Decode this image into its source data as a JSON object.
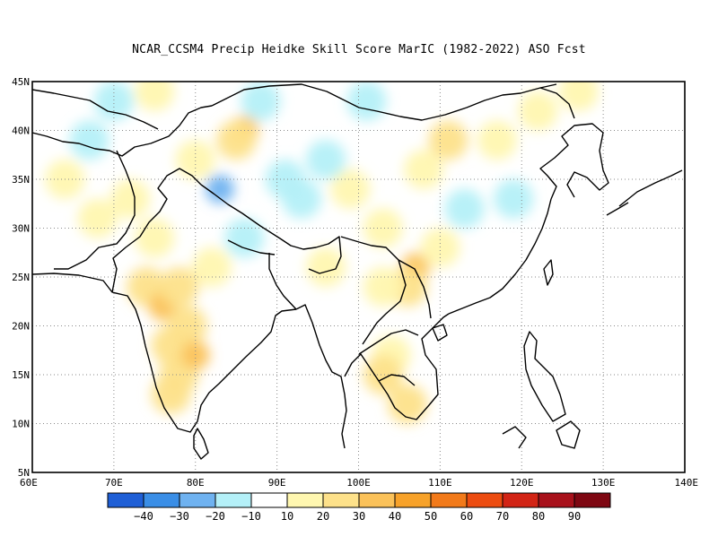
{
  "title": "NCAR_CCSM4 Precip Heidke Skill Score MarIC (1982-2022) ASO Fcst",
  "map": {
    "lon_range": [
      60,
      140
    ],
    "lat_range": [
      5,
      45
    ],
    "lon_ticks": [
      "60E",
      "70E",
      "80E",
      "90E",
      "100E",
      "110E",
      "120E",
      "130E",
      "140E"
    ],
    "lat_ticks": [
      "5N",
      "10N",
      "15N",
      "20N",
      "25N",
      "30N",
      "35N",
      "40N",
      "45N"
    ],
    "grid": "dotted"
  },
  "colorbar": {
    "colors": [
      "#1f5fd6",
      "#3a8ee6",
      "#6fb2f0",
      "#b4f0f8",
      "#ffffff",
      "#fff7b0",
      "#fde18a",
      "#fbc25a",
      "#f7a22a",
      "#f27a1a",
      "#ec4c10",
      "#d22415",
      "#a8111b",
      "#7e0712"
    ],
    "labels": [
      "-40",
      "-30",
      "-20",
      "-10",
      "10",
      "20",
      "30",
      "40",
      "50",
      "60",
      "70",
      "80",
      "90"
    ]
  },
  "anomalies": [
    {
      "lon": 68,
      "lat": 31,
      "level": 1
    },
    {
      "lon": 64,
      "lat": 35,
      "level": 1
    },
    {
      "lon": 72,
      "lat": 33,
      "level": 1
    },
    {
      "lon": 75,
      "lat": 29,
      "level": 1
    },
    {
      "lon": 74,
      "lat": 24,
      "level": 2
    },
    {
      "lon": 76,
      "lat": 22,
      "level": 3
    },
    {
      "lon": 78,
      "lat": 24,
      "level": 2
    },
    {
      "lon": 79,
      "lat": 20,
      "level": 2
    },
    {
      "lon": 77,
      "lat": 18,
      "level": 2
    },
    {
      "lon": 78,
      "lat": 15,
      "level": 2
    },
    {
      "lon": 77,
      "lat": 13,
      "level": 2
    },
    {
      "lon": 80,
      "lat": 17,
      "level": 3
    },
    {
      "lon": 82,
      "lat": 26,
      "level": 1
    },
    {
      "lon": 86,
      "lat": 40,
      "level": 3
    },
    {
      "lon": 85,
      "lat": 39,
      "level": 2
    },
    {
      "lon": 96,
      "lat": 26,
      "level": 1
    },
    {
      "lon": 99,
      "lat": 34,
      "level": 1
    },
    {
      "lon": 103,
      "lat": 30,
      "level": 1
    },
    {
      "lon": 107,
      "lat": 26,
      "level": 3
    },
    {
      "lon": 106,
      "lat": 24,
      "level": 2
    },
    {
      "lon": 103,
      "lat": 24,
      "level": 1
    },
    {
      "lon": 110,
      "lat": 28,
      "level": 1
    },
    {
      "lon": 111,
      "lat": 39,
      "level": 2
    },
    {
      "lon": 108,
      "lat": 36,
      "level": 1
    },
    {
      "lon": 104,
      "lat": 17,
      "level": 1
    },
    {
      "lon": 103,
      "lat": 15,
      "level": 2
    },
    {
      "lon": 106,
      "lat": 12,
      "level": 2
    },
    {
      "lon": 117,
      "lat": 39,
      "level": 1
    },
    {
      "lon": 122,
      "lat": 42,
      "level": 1
    },
    {
      "lon": 127,
      "lat": 44,
      "level": 1
    },
    {
      "lon": 75,
      "lat": 44,
      "level": 1
    },
    {
      "lon": 80,
      "lat": 37,
      "level": 1
    },
    {
      "lon": 70,
      "lat": 43,
      "level": -1
    },
    {
      "lon": 67,
      "lat": 39,
      "level": -1
    },
    {
      "lon": 88,
      "lat": 43,
      "level": -1
    },
    {
      "lon": 91,
      "lat": 35,
      "level": -1
    },
    {
      "lon": 83,
      "lat": 34,
      "level": -2
    },
    {
      "lon": 93,
      "lat": 33,
      "level": -1
    },
    {
      "lon": 96,
      "lat": 37,
      "level": -1
    },
    {
      "lon": 113,
      "lat": 32,
      "level": -1
    },
    {
      "lon": 119,
      "lat": 33,
      "level": -1
    },
    {
      "lon": 86,
      "lat": 29,
      "level": -1
    },
    {
      "lon": 101,
      "lat": 43,
      "level": -1
    }
  ]
}
